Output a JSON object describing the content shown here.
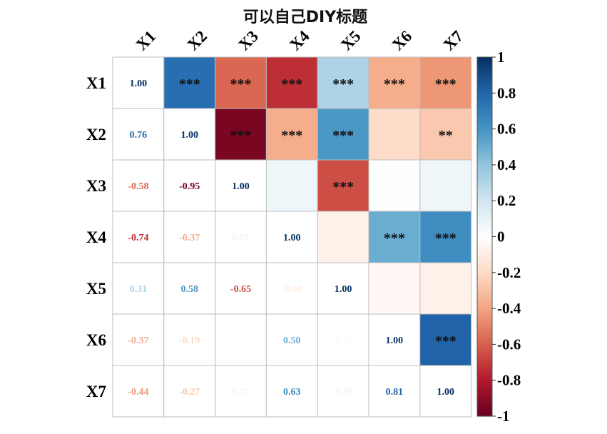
{
  "chart_data": {
    "type": "heatmap",
    "title": "可以自己DIY标题",
    "variables": [
      "X1",
      "X2",
      "X3",
      "X4",
      "X5",
      "X6",
      "X7"
    ],
    "matrix": [
      [
        1.0,
        0.76,
        -0.58,
        -0.74,
        0.31,
        -0.37,
        -0.44
      ],
      [
        0.76,
        1.0,
        -0.95,
        -0.37,
        0.58,
        -0.19,
        -0.27
      ],
      [
        -0.58,
        -0.95,
        1.0,
        0.07,
        -0.65,
        0.01,
        0.07
      ],
      [
        -0.74,
        -0.37,
        0.07,
        1.0,
        -0.08,
        0.5,
        0.63
      ],
      [
        0.31,
        0.58,
        -0.65,
        -0.08,
        1.0,
        -0.04,
        -0.08
      ],
      [
        -0.37,
        -0.19,
        0.01,
        0.5,
        -0.04,
        1.0,
        0.81
      ],
      [
        -0.44,
        -0.27,
        0.07,
        0.63,
        -0.08,
        0.81,
        1.0
      ]
    ],
    "lower_text_labels": [
      [
        "1.00",
        "",
        "",
        "",
        "",
        "",
        ""
      ],
      [
        "0.76",
        "1.00",
        "",
        "",
        "",
        "",
        ""
      ],
      [
        "-0.58",
        "-0.95",
        "1.00",
        "",
        "",
        "",
        ""
      ],
      [
        "-0.74",
        "-0.37",
        "0.07",
        "1.00",
        "",
        "",
        ""
      ],
      [
        "0.31",
        "0.58",
        "-0.65",
        "-0.08",
        "1.00",
        "",
        ""
      ],
      [
        "-0.37",
        "-0.19",
        "0.01",
        "0.50",
        "-0.04",
        "1.00",
        ""
      ],
      [
        "-0.44",
        "-0.27",
        "0.07",
        "0.63",
        "-0.08",
        "0.81",
        "1.00"
      ]
    ],
    "upper_significance": [
      [
        "",
        "***",
        "***",
        "***",
        "***",
        "***",
        "***"
      ],
      [
        "",
        "",
        "***",
        "***",
        "***",
        "",
        "**"
      ],
      [
        "",
        "",
        "",
        "",
        "***",
        "",
        ""
      ],
      [
        "",
        "",
        "",
        "",
        "",
        "***",
        "***"
      ],
      [
        "",
        "",
        "",
        "",
        "",
        "",
        ""
      ],
      [
        "",
        "",
        "",
        "",
        "",
        "",
        "***"
      ],
      [
        "",
        "",
        "",
        "",
        "",
        "",
        ""
      ]
    ],
    "colorbar": {
      "range": [
        -1,
        1
      ],
      "ticks": [
        1,
        0.8,
        0.6,
        0.4,
        0.2,
        0,
        -0.2,
        -0.4,
        -0.6,
        -0.8,
        -1
      ],
      "tick_labels": [
        "1",
        "0.8",
        "0.6",
        "0.4",
        "0.2",
        "0",
        "-0.2",
        "-0.4",
        "-0.6",
        "-0.8",
        "-1"
      ],
      "palette": [
        "#67001F",
        "#B2182B",
        "#D6604D",
        "#F4A582",
        "#FDDBC7",
        "#FFFFFF",
        "#D1E5F0",
        "#92C5DE",
        "#4393C3",
        "#2166AC",
        "#053061"
      ]
    },
    "grid": true
  }
}
